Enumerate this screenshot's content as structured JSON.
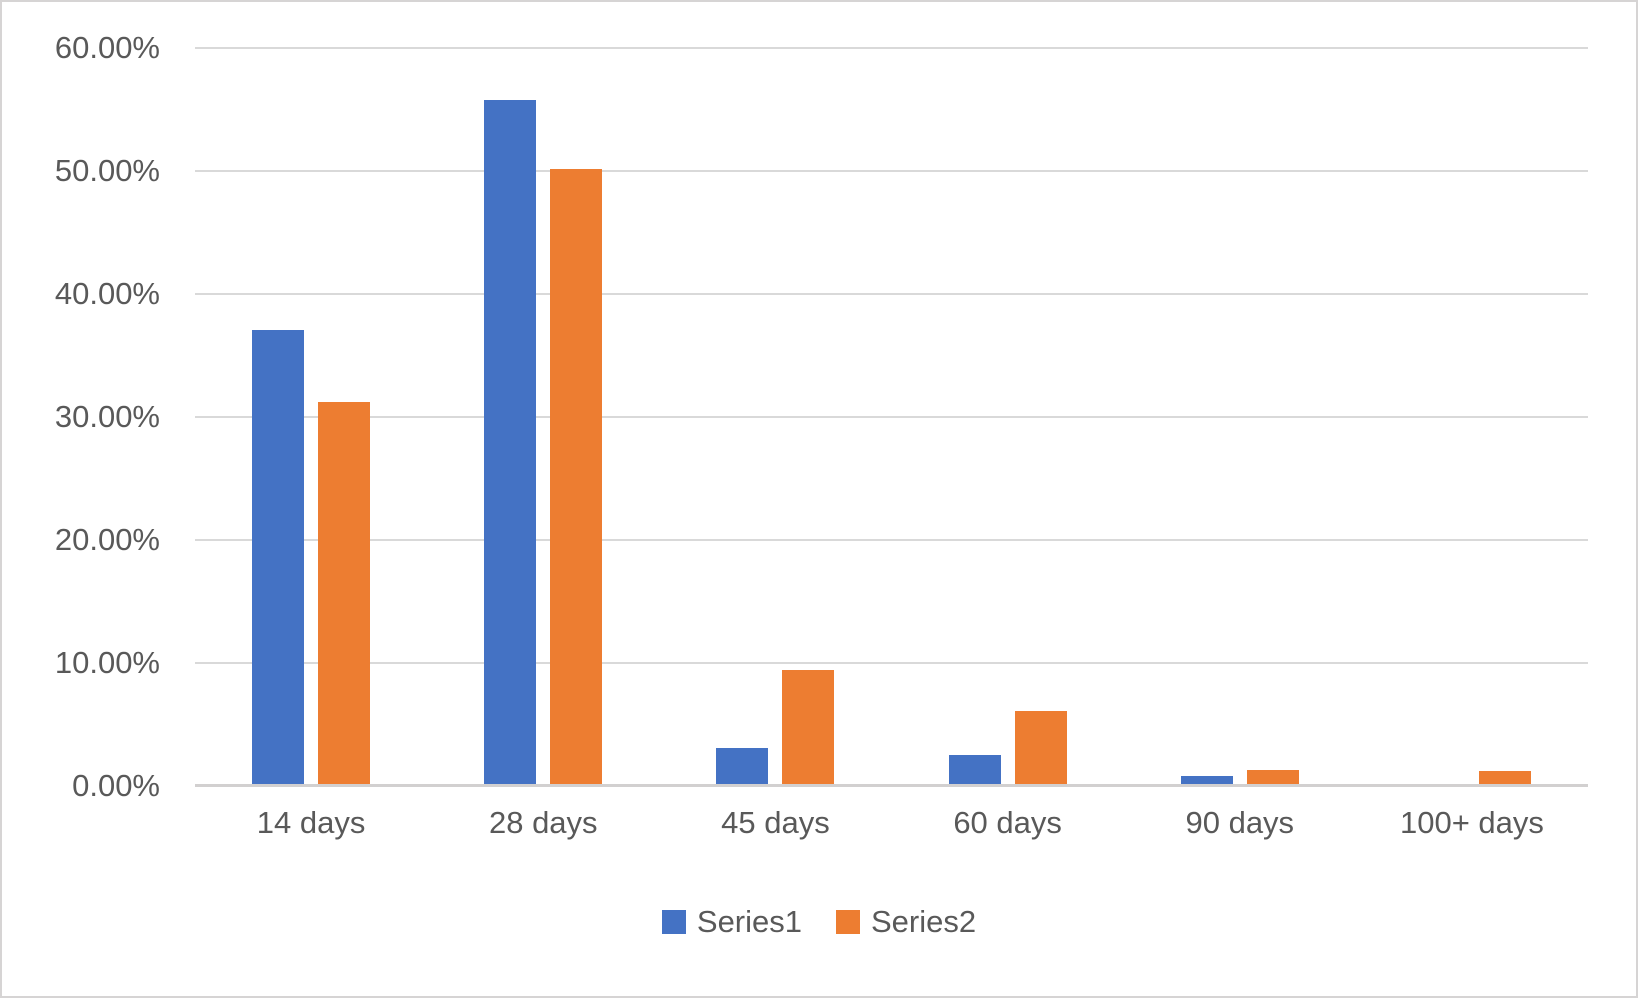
{
  "chart_data": {
    "type": "bar",
    "title": "",
    "categories": [
      "14 days",
      "28 days",
      "45 days",
      "60 days",
      "90 days",
      "100+ days"
    ],
    "series": [
      {
        "name": "Series1",
        "color": "#4472C4",
        "values": [
          37.1,
          55.8,
          3.1,
          2.5,
          0.8,
          0.2
        ]
      },
      {
        "name": "Series2",
        "color": "#ED7D31",
        "values": [
          31.2,
          50.2,
          9.4,
          6.1,
          1.3,
          1.2
        ]
      }
    ],
    "y_axis": {
      "min": 0,
      "max": 60,
      "step": 10,
      "tick_labels": [
        "0.00%",
        "10.00%",
        "20.00%",
        "30.00%",
        "40.00%",
        "50.00%",
        "60.00%"
      ],
      "format": "percent"
    },
    "x_axis": {
      "tick_labels": [
        "14 days",
        "28 days",
        "45 days",
        "60 days",
        "90 days",
        "100+ days"
      ]
    },
    "grid": true,
    "legend_position": "bottom",
    "style": {
      "grid_color": "#D9D9D9",
      "axis_line_color": "#D2D0D0",
      "text_color": "#595959",
      "background": "#FFFFFF",
      "frame_border_color": "#D6D4D4"
    }
  },
  "legend": {
    "items": [
      {
        "label": "Series1",
        "color": "#4472C4"
      },
      {
        "label": "Series2",
        "color": "#ED7D31"
      }
    ]
  }
}
